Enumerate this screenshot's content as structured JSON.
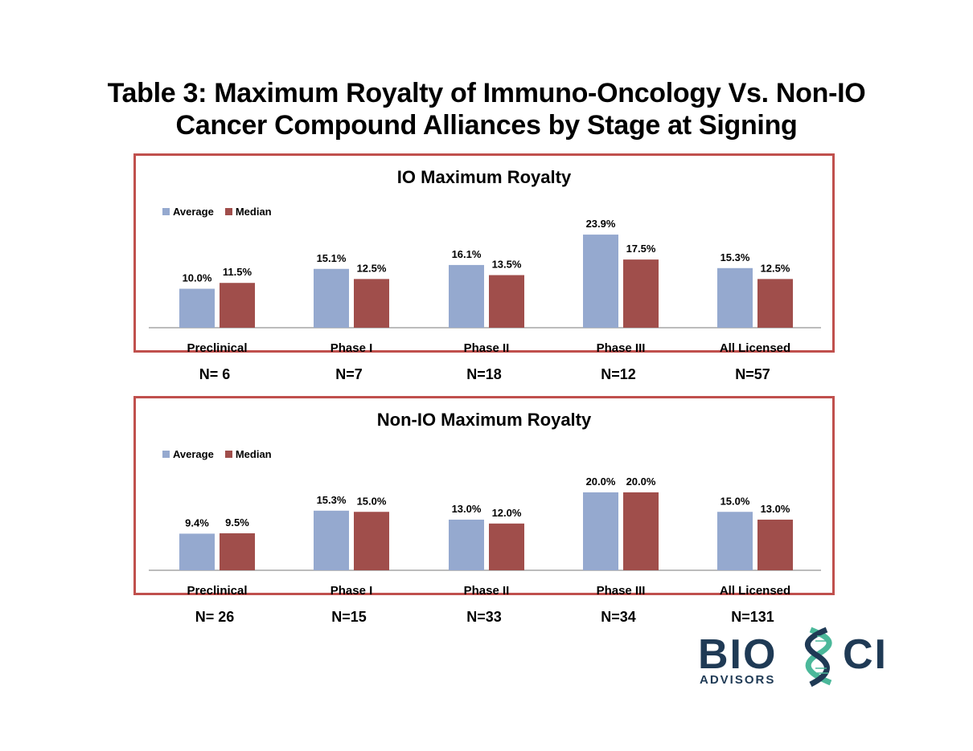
{
  "title": {
    "line1": "Table 3:  Maximum Royalty of Immuno-Oncology Vs. Non-IO",
    "line2": "Cancer Compound Alliances by Stage at Signing"
  },
  "colors": {
    "average": "#95a9cf",
    "median": "#a04e4b",
    "border": "#c0504d"
  },
  "chart_data": [
    {
      "type": "bar",
      "title": "IO Maximum Royalty",
      "categories": [
        "Preclinical",
        "Phase I",
        "Phase II",
        "Phase III",
        "All Licensed"
      ],
      "series": [
        {
          "name": "Average",
          "values": [
            10.0,
            15.1,
            16.1,
            23.9,
            15.3
          ],
          "labels": [
            "10.0%",
            "15.1%",
            "16.1%",
            "23.9%",
            "15.3%"
          ]
        },
        {
          "name": "Median",
          "values": [
            11.5,
            12.5,
            13.5,
            17.5,
            12.5
          ],
          "labels": [
            "11.5%",
            "12.5%",
            "13.5%",
            "17.5%",
            "12.5%"
          ]
        }
      ],
      "n_labels": [
        "N= 6",
        "N=7",
        "N=18",
        "N=12",
        "N=57"
      ],
      "legend": "top-left",
      "xlabel": "",
      "ylabel": "",
      "ylim": [
        0,
        25
      ],
      "grid": false
    },
    {
      "type": "bar",
      "title": "Non-IO Maximum Royalty",
      "categories": [
        "Preclinical",
        "Phase I",
        "Phase II",
        "Phase III",
        "All Licensed"
      ],
      "series": [
        {
          "name": "Average",
          "values": [
            9.4,
            15.3,
            13.0,
            20.0,
            15.0
          ],
          "labels": [
            "9.4%",
            "15.3%",
            "13.0%",
            "20.0%",
            "15.0%"
          ]
        },
        {
          "name": "Median",
          "values": [
            9.5,
            15.0,
            12.0,
            20.0,
            13.0
          ],
          "labels": [
            "9.5%",
            "15.0%",
            "12.0%",
            "20.0%",
            "13.0%"
          ]
        }
      ],
      "n_labels": [
        "N= 26",
        "N=15",
        "N=33",
        "N=34",
        "N=131"
      ],
      "legend": "top-left",
      "xlabel": "",
      "ylabel": "",
      "ylim": [
        0,
        25
      ],
      "grid": false
    }
  ],
  "logo": {
    "word_left": "BIO",
    "word_right": "CI",
    "sub": "ADVISORS"
  }
}
